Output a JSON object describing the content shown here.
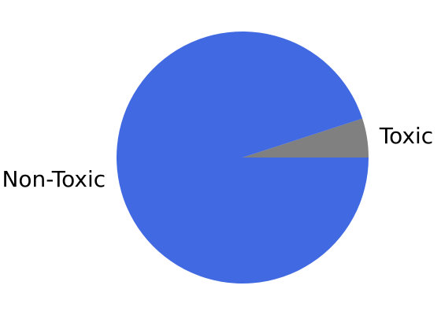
{
  "chart_data": {
    "type": "pie",
    "title": "",
    "slices": [
      {
        "label": "Toxic",
        "value": 5,
        "color": "#808080"
      },
      {
        "label": "Non-Toxic",
        "value": 95,
        "color": "#4169E1"
      }
    ],
    "start_angle_deg": 0,
    "direction": "counterclockwise",
    "legend": "none"
  }
}
